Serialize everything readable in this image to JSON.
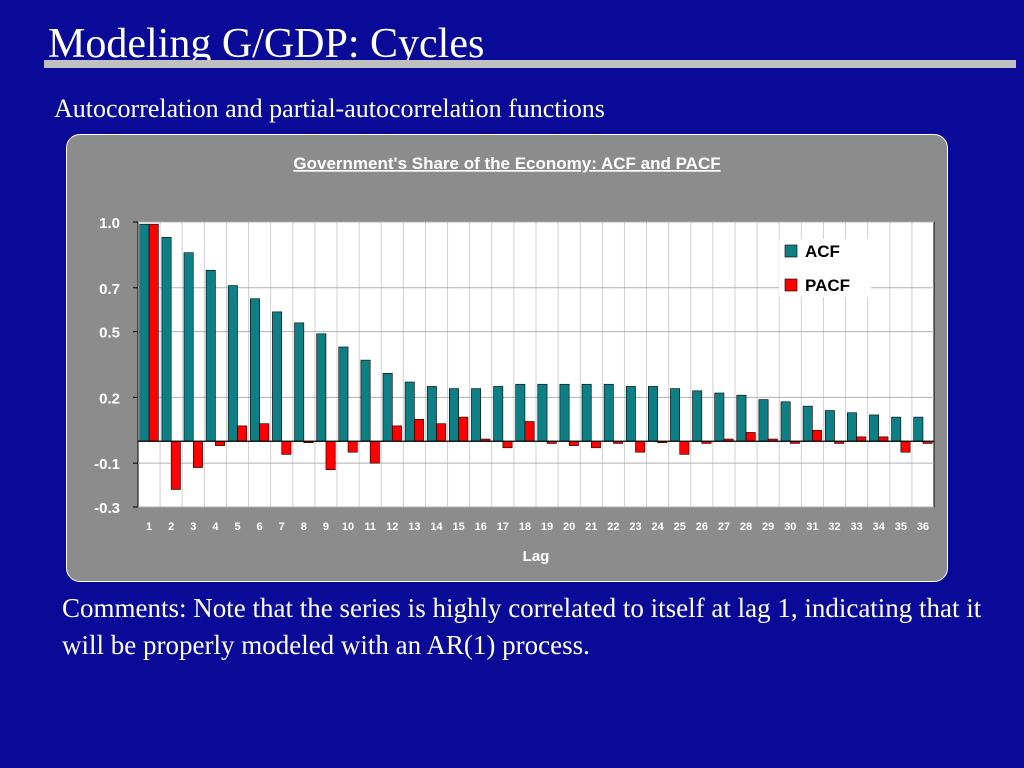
{
  "slide": {
    "title": "Modeling G/GDP: Cycles",
    "subtitle": "Autocorrelation and partial-autocorrelation functions",
    "comments": "Comments: Note that the series is highly correlated to itself at lag 1, indicating that it will be properly modeled with an AR(1) process."
  },
  "colors": {
    "background": "#0a0a99",
    "panel": "#8c8c8c",
    "plot_area": "#ffffff",
    "acf": "#0f7f86",
    "pacf": "#ff0000"
  },
  "chart_data": {
    "type": "bar",
    "title": "Government's Share of the Economy: ACF and PACF",
    "xlabel": "Lag",
    "ylabel": "",
    "ylim": [
      -0.3,
      1.0
    ],
    "yticks": [
      1.0,
      0.7,
      0.5,
      0.2,
      -0.1,
      -0.3
    ],
    "ytick_labels": [
      "1.0",
      "0.7",
      "0.5",
      "0.2",
      "-0.1",
      "-0.3"
    ],
    "grid": true,
    "legend": "top-right",
    "categories": [
      "1",
      "2",
      "3",
      "4",
      "5",
      "6",
      "7",
      "8",
      "9",
      "10",
      "11",
      "12",
      "13",
      "14",
      "15",
      "16",
      "17",
      "18",
      "19",
      "20",
      "21",
      "22",
      "23",
      "24",
      "25",
      "26",
      "27",
      "28",
      "29",
      "30",
      "31",
      "32",
      "33",
      "34",
      "35",
      "36"
    ],
    "series": [
      {
        "name": "ACF",
        "values": [
          0.99,
          0.93,
          0.86,
          0.78,
          0.71,
          0.65,
          0.59,
          0.54,
          0.49,
          0.43,
          0.37,
          0.31,
          0.27,
          0.25,
          0.24,
          0.24,
          0.25,
          0.26,
          0.26,
          0.26,
          0.26,
          0.26,
          0.25,
          0.25,
          0.24,
          0.23,
          0.22,
          0.21,
          0.19,
          0.18,
          0.16,
          0.14,
          0.13,
          0.12,
          0.11,
          0.11
        ]
      },
      {
        "name": "PACF",
        "values": [
          0.99,
          -0.22,
          -0.12,
          -0.02,
          0.07,
          0.08,
          -0.06,
          0.0,
          -0.13,
          -0.05,
          -0.1,
          0.07,
          0.1,
          0.08,
          0.11,
          0.01,
          -0.03,
          0.09,
          -0.01,
          -0.02,
          -0.03,
          -0.01,
          -0.05,
          0.0,
          -0.06,
          -0.01,
          0.01,
          0.04,
          0.01,
          -0.01,
          0.05,
          -0.01,
          0.02,
          0.02,
          -0.05,
          -0.01
        ]
      }
    ]
  }
}
